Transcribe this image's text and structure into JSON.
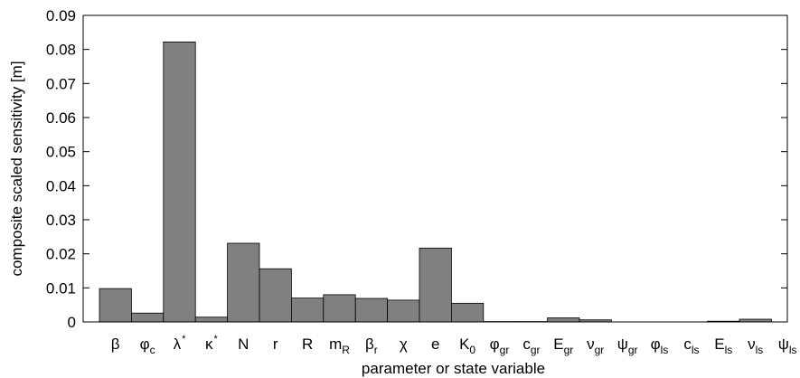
{
  "chart_data": {
    "type": "bar",
    "title": "",
    "xlabel": "parameter or state variable",
    "ylabel": "composite scaled sensitivity [m]",
    "ylim": [
      0,
      0.09
    ],
    "yticks": [
      "0",
      "0.01",
      "0.02",
      "0.03",
      "0.04",
      "0.05",
      "0.06",
      "0.07",
      "0.08",
      "0.09"
    ],
    "grid": false,
    "bar_color": "#808080",
    "categories": [
      "β",
      "φc",
      "λ*",
      "κ*",
      "N",
      "r",
      "R",
      "mR",
      "βr",
      "χ",
      "e",
      "K0",
      "φgr",
      "cgr",
      "Egr",
      "νgr",
      "ψgr",
      "φls",
      "cls",
      "Els",
      "νls",
      "ψls"
    ],
    "category_parts": [
      {
        "base": "β",
        "sub": "",
        "sup": ""
      },
      {
        "base": "φ",
        "sub": "c",
        "sup": ""
      },
      {
        "base": "λ",
        "sub": "",
        "sup": "*"
      },
      {
        "base": "κ",
        "sub": "",
        "sup": "*"
      },
      {
        "base": "N",
        "sub": "",
        "sup": ""
      },
      {
        "base": "r",
        "sub": "",
        "sup": ""
      },
      {
        "base": "R",
        "sub": "",
        "sup": ""
      },
      {
        "base": "m",
        "sub": "R",
        "sup": ""
      },
      {
        "base": "β",
        "sub": "r",
        "sup": ""
      },
      {
        "base": "χ",
        "sub": "",
        "sup": ""
      },
      {
        "base": "e",
        "sub": "",
        "sup": ""
      },
      {
        "base": "K",
        "sub": "0",
        "sup": ""
      },
      {
        "base": "φ",
        "sub": "gr",
        "sup": ""
      },
      {
        "base": "c",
        "sub": "gr",
        "sup": ""
      },
      {
        "base": "E",
        "sub": "gr",
        "sup": ""
      },
      {
        "base": "ν",
        "sub": "gr",
        "sup": ""
      },
      {
        "base": "ψ",
        "sub": "gr",
        "sup": ""
      },
      {
        "base": "φ",
        "sub": "ls",
        "sup": ""
      },
      {
        "base": "c",
        "sub": "ls",
        "sup": ""
      },
      {
        "base": "E",
        "sub": "ls",
        "sup": ""
      },
      {
        "base": "ν",
        "sub": "ls",
        "sup": ""
      },
      {
        "base": "ψ",
        "sub": "ls",
        "sup": ""
      }
    ],
    "values": [
      0.0098,
      0.0026,
      0.0822,
      0.0014,
      0.0231,
      0.0156,
      0.007,
      0.008,
      0.0069,
      0.0064,
      0.0217,
      0.0055,
      0.0001,
      0.0001,
      0.0012,
      0.0006,
      0.0,
      0.0,
      0.0,
      0.0002,
      0.0008,
      0.0
    ]
  }
}
